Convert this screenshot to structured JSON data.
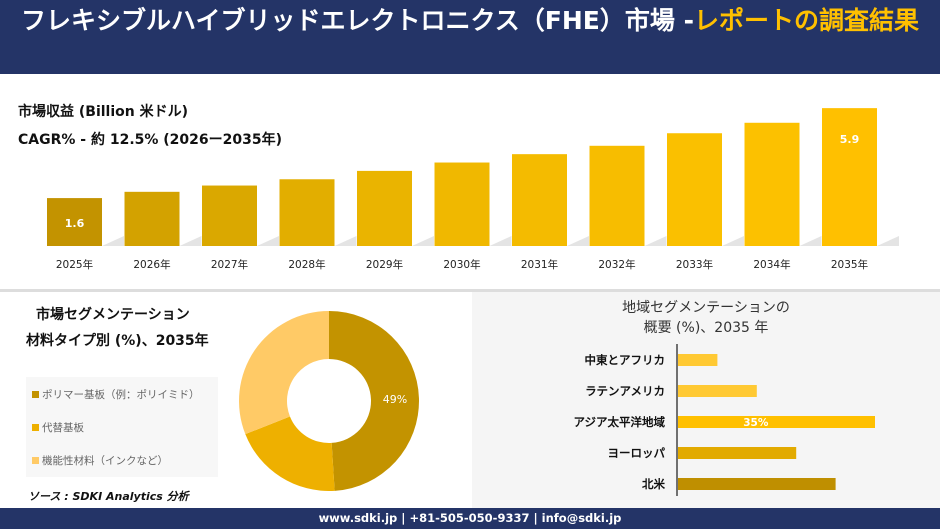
{
  "header": {
    "title_main": "フレキシブルハイブリッドエレクトロニクス（FHE）市場 -",
    "title_highlight": "レポートの調査結果"
  },
  "revenue": {
    "label": "市場収益 (Billion 米ドル)",
    "cagr": "CAGR% - 約 12.5% (2026ー2035年)"
  },
  "segment": {
    "title1": "市場セグメンテーション",
    "title2": "材料タイプ別 (%)、2035年",
    "source": "ソース : SDKI Analytics 分析"
  },
  "region": {
    "title1": "地域セグメンテーションの",
    "title2": "概要 (%)、2035 年"
  },
  "footer": {
    "contact": "www.sdki.jp | +81-505-050-9337 | info@sdki.jp"
  },
  "colors": {
    "navy": "#243467",
    "accent": "#FFC000"
  },
  "chart_data": [
    {
      "type": "bar",
      "title": "市場収益 (Billion 米ドル)",
      "categories": [
        "2025年",
        "2026年",
        "2027年",
        "2028年",
        "2029年",
        "2030年",
        "2031年",
        "2032年",
        "2033年",
        "2034年",
        "2035年"
      ],
      "values": [
        1.6,
        1.9,
        2.2,
        2.5,
        2.9,
        3.3,
        3.7,
        4.1,
        4.7,
        5.2,
        5.9
      ],
      "data_labels": {
        "0": "1.6",
        "10": "5.9"
      },
      "colors": [
        "#C39300",
        "#D3A200",
        "#DAA800",
        "#E2AE00",
        "#EAB400",
        "#F0B800",
        "#F4BB00",
        "#F7BD00",
        "#FAC000",
        "#FCC100",
        "#FFC000"
      ]
    },
    {
      "type": "pie",
      "subtype": "donut",
      "title": "材料タイプ別 (%)、2035年",
      "labels": [
        "ポリマー基板（例：ポリイミド）",
        "代替基板",
        "機能性材料（インクなど）"
      ],
      "values": [
        49,
        20,
        31
      ],
      "data_labels": {
        "0": "49%"
      },
      "colors": [
        "#C39300",
        "#EEB000",
        "#FFCA66"
      ],
      "legend": "left"
    },
    {
      "type": "bar",
      "orientation": "horizontal",
      "title": "地域セグメンテーションの概要 (%)、2035 年",
      "categories": [
        "中東とアフリカ",
        "ラテンアメリカ",
        "アジア太平洋地域",
        "ヨーロッパ",
        "北米"
      ],
      "values": [
        7,
        14,
        35,
        21,
        28
      ],
      "data_labels": {
        "2": "35%"
      },
      "colors": [
        "#FFC933",
        "#FFC933",
        "#FFC000",
        "#E2AA00",
        "#BF8F00"
      ]
    }
  ]
}
